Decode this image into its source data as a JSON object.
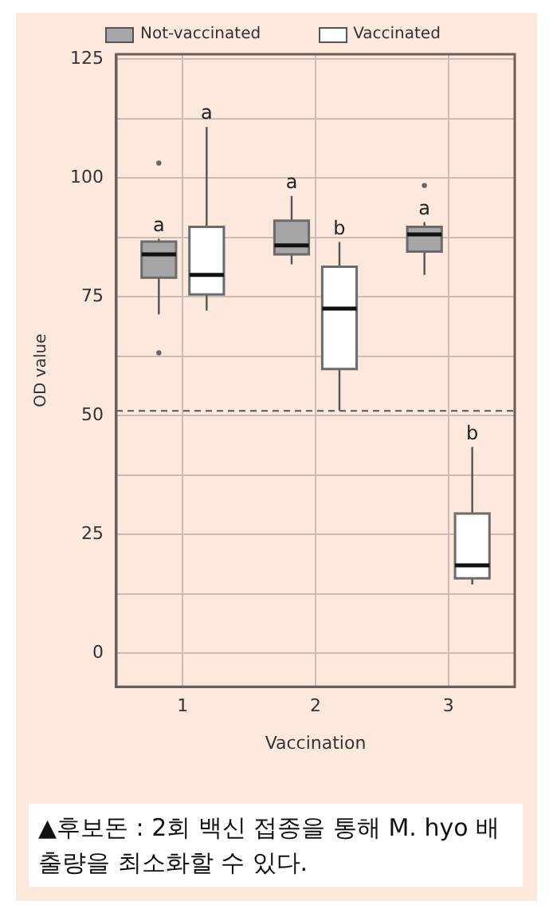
{
  "chart_data": {
    "type": "box",
    "categories": [
      "1",
      "2",
      "3"
    ],
    "series": [
      {
        "name": "Not-vaccinated",
        "color": "#a6a6a6",
        "boxes": [
          {
            "low": 71.3,
            "q1": 79,
            "median": 83.9,
            "q3": 86.6,
            "high": 87.2,
            "outliers": [
              103.1,
              63.2
            ]
          },
          {
            "low": 81.8,
            "q1": 83.9,
            "median": 85.8,
            "q3": 91,
            "high": 96.2
          },
          {
            "low": 79.6,
            "q1": 84.5,
            "median": 88.1,
            "q3": 89.7,
            "high": 90.7,
            "outliers": [
              98.4
            ]
          }
        ]
      },
      {
        "name": "Vaccinated",
        "color": "#ffffff",
        "boxes": [
          {
            "low": 72.1,
            "q1": 75.5,
            "median": 79.6,
            "q3": 89.7,
            "high": 110.7
          },
          {
            "low": 51.1,
            "q1": 59.8,
            "median": 72.5,
            "q3": 81.3,
            "high": 86.5
          },
          {
            "low": 14.5,
            "q1": 15.8,
            "median": 18.5,
            "q3": 29.4,
            "high": 43.4
          }
        ]
      }
    ],
    "xlabel": "Vaccination",
    "ylabel": "OD value",
    "ylim": [
      -7,
      126
    ],
    "yticks": [
      0,
      {
        "value": 12.5,
        "label": null
      },
      25,
      {
        "value": 37.5,
        "label": null
      },
      50,
      {
        "value": 62.5,
        "label": null
      },
      75,
      {
        "value": 87.5,
        "label": null
      },
      100,
      {
        "value": 112.5,
        "label": null
      },
      125
    ],
    "grid": true,
    "legend": "top left",
    "ref_lines": [
      {
        "axis": "y",
        "value": 51,
        "line_style": "dashed",
        "color": "#555555"
      }
    ],
    "annotations": [
      "a",
      "a",
      "a",
      "b",
      "a",
      "b",
      "▲후보돈 : 2회 백신 접종을 통해 M. hyo 배출량을 최소화할 수 있다."
    ]
  }
}
